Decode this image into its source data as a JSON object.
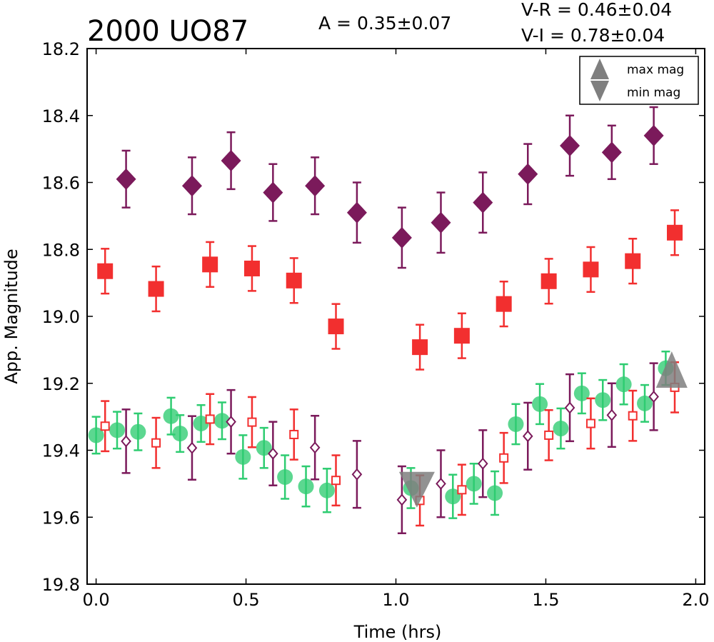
{
  "header": {
    "title": "2000 UO87",
    "amplitude": "A  = 0.35±0.07",
    "color_vr": "V-R = 0.46±0.04",
    "color_vi": "V-I  = 0.78±0.04"
  },
  "legend": {
    "placement": "top-right",
    "items": [
      {
        "label": "max mag",
        "icon": "triangle-up-icon",
        "color": "#7f7f7f"
      },
      {
        "label": "min mag",
        "icon": "triangle-down-icon",
        "color": "#7f7f7f"
      }
    ]
  },
  "chart_data": {
    "type": "scatter",
    "title": "2000 UO87",
    "xlabel": "Time (hrs)",
    "ylabel": "App. Magnitude",
    "xlim": [
      -0.03,
      2.03
    ],
    "ylim": [
      19.8,
      18.2
    ],
    "y_inverted": true,
    "x_ticks": [
      "0.0",
      "0.5",
      "1.0",
      "1.5",
      "2.0"
    ],
    "y_ticks": [
      "18.2",
      "18.4",
      "18.6",
      "18.8",
      "19.0",
      "19.2",
      "19.4",
      "19.6",
      "19.8"
    ],
    "grid": false,
    "series": [
      {
        "marker": "diamond-filled",
        "color": "#7b1a5b",
        "points": [
          {
            "x": 0.1,
            "y": 18.59,
            "err": 0.085
          },
          {
            "x": 0.32,
            "y": 18.61,
            "err": 0.085
          },
          {
            "x": 0.45,
            "y": 18.535,
            "err": 0.085
          },
          {
            "x": 0.59,
            "y": 18.63,
            "err": 0.085
          },
          {
            "x": 0.73,
            "y": 18.61,
            "err": 0.085
          },
          {
            "x": 0.87,
            "y": 18.69,
            "err": 0.09
          },
          {
            "x": 1.02,
            "y": 18.765,
            "err": 0.09
          },
          {
            "x": 1.15,
            "y": 18.72,
            "err": 0.09
          },
          {
            "x": 1.29,
            "y": 18.66,
            "err": 0.09
          },
          {
            "x": 1.44,
            "y": 18.575,
            "err": 0.09
          },
          {
            "x": 1.58,
            "y": 18.49,
            "err": 0.09
          },
          {
            "x": 1.72,
            "y": 18.51,
            "err": 0.08
          },
          {
            "x": 1.86,
            "y": 18.46,
            "err": 0.085
          }
        ]
      },
      {
        "marker": "square-filled",
        "color": "#f22f2f",
        "points": [
          {
            "x": 0.03,
            "y": 18.865,
            "err": 0.067
          },
          {
            "x": 0.2,
            "y": 18.918,
            "err": 0.067
          },
          {
            "x": 0.38,
            "y": 18.845,
            "err": 0.067
          },
          {
            "x": 0.52,
            "y": 18.857,
            "err": 0.067
          },
          {
            "x": 0.66,
            "y": 18.893,
            "err": 0.067
          },
          {
            "x": 0.8,
            "y": 19.03,
            "err": 0.067
          },
          {
            "x": 1.08,
            "y": 19.092,
            "err": 0.067
          },
          {
            "x": 1.22,
            "y": 19.058,
            "err": 0.067
          },
          {
            "x": 1.36,
            "y": 18.963,
            "err": 0.067
          },
          {
            "x": 1.51,
            "y": 18.895,
            "err": 0.067
          },
          {
            "x": 1.65,
            "y": 18.86,
            "err": 0.067
          },
          {
            "x": 1.79,
            "y": 18.835,
            "err": 0.067
          },
          {
            "x": 1.93,
            "y": 18.75,
            "err": 0.067
          }
        ]
      },
      {
        "marker": "circle-filled",
        "color": "#2ecc71",
        "points": [
          {
            "x": 0.0,
            "y": 19.355,
            "err": 0.055
          },
          {
            "x": 0.07,
            "y": 19.34,
            "err": 0.055
          },
          {
            "x": 0.14,
            "y": 19.345,
            "err": 0.055
          },
          {
            "x": 0.25,
            "y": 19.298,
            "err": 0.055
          },
          {
            "x": 0.28,
            "y": 19.35,
            "err": 0.055
          },
          {
            "x": 0.35,
            "y": 19.32,
            "err": 0.055
          },
          {
            "x": 0.42,
            "y": 19.312,
            "err": 0.055
          },
          {
            "x": 0.49,
            "y": 19.42,
            "err": 0.065
          },
          {
            "x": 0.56,
            "y": 19.393,
            "err": 0.06
          },
          {
            "x": 0.63,
            "y": 19.48,
            "err": 0.065
          },
          {
            "x": 0.7,
            "y": 19.508,
            "err": 0.06
          },
          {
            "x": 0.77,
            "y": 19.52,
            "err": 0.065
          },
          {
            "x": 1.05,
            "y": 19.513,
            "err": 0.06
          },
          {
            "x": 1.19,
            "y": 19.538,
            "err": 0.065
          },
          {
            "x": 1.26,
            "y": 19.5,
            "err": 0.06
          },
          {
            "x": 1.33,
            "y": 19.528,
            "err": 0.065
          },
          {
            "x": 1.4,
            "y": 19.322,
            "err": 0.06
          },
          {
            "x": 1.48,
            "y": 19.262,
            "err": 0.06
          },
          {
            "x": 1.55,
            "y": 19.335,
            "err": 0.06
          },
          {
            "x": 1.62,
            "y": 19.23,
            "err": 0.06
          },
          {
            "x": 1.69,
            "y": 19.25,
            "err": 0.06
          },
          {
            "x": 1.76,
            "y": 19.203,
            "err": 0.06
          },
          {
            "x": 1.83,
            "y": 19.26,
            "err": 0.055
          },
          {
            "x": 1.9,
            "y": 19.155,
            "err": 0.05
          }
        ]
      },
      {
        "marker": "square-open",
        "color": "#f22f2f",
        "points": [
          {
            "x": 0.03,
            "y": 19.328,
            "err": 0.075
          },
          {
            "x": 0.2,
            "y": 19.378,
            "err": 0.075
          },
          {
            "x": 0.38,
            "y": 19.307,
            "err": 0.075
          },
          {
            "x": 0.52,
            "y": 19.316,
            "err": 0.075
          },
          {
            "x": 0.66,
            "y": 19.353,
            "err": 0.075
          },
          {
            "x": 0.8,
            "y": 19.49,
            "err": 0.075
          },
          {
            "x": 1.08,
            "y": 19.55,
            "err": 0.075
          },
          {
            "x": 1.22,
            "y": 19.518,
            "err": 0.075
          },
          {
            "x": 1.36,
            "y": 19.423,
            "err": 0.075
          },
          {
            "x": 1.51,
            "y": 19.355,
            "err": 0.075
          },
          {
            "x": 1.65,
            "y": 19.32,
            "err": 0.075
          },
          {
            "x": 1.79,
            "y": 19.297,
            "err": 0.075
          },
          {
            "x": 1.93,
            "y": 19.212,
            "err": 0.075
          }
        ]
      },
      {
        "marker": "diamond-open",
        "color": "#7b1a5b",
        "points": [
          {
            "x": 0.1,
            "y": 19.373,
            "err": 0.095
          },
          {
            "x": 0.32,
            "y": 19.393,
            "err": 0.095
          },
          {
            "x": 0.45,
            "y": 19.315,
            "err": 0.095
          },
          {
            "x": 0.59,
            "y": 19.41,
            "err": 0.095
          },
          {
            "x": 0.73,
            "y": 19.392,
            "err": 0.095
          },
          {
            "x": 0.87,
            "y": 19.472,
            "err": 0.1
          },
          {
            "x": 1.02,
            "y": 19.548,
            "err": 0.1
          },
          {
            "x": 1.15,
            "y": 19.5,
            "err": 0.1
          },
          {
            "x": 1.29,
            "y": 19.44,
            "err": 0.1
          },
          {
            "x": 1.44,
            "y": 19.358,
            "err": 0.1
          },
          {
            "x": 1.58,
            "y": 19.273,
            "err": 0.1
          },
          {
            "x": 1.72,
            "y": 19.295,
            "err": 0.095
          },
          {
            "x": 1.86,
            "y": 19.24,
            "err": 0.1
          }
        ]
      },
      {
        "marker": "triangle-up",
        "color": "#7f7f7f",
        "name": "max mag",
        "points": [
          {
            "x": 1.92,
            "y": 19.175
          }
        ]
      },
      {
        "marker": "triangle-down",
        "color": "#7f7f7f",
        "name": "min mag",
        "points": [
          {
            "x": 1.07,
            "y": 19.52
          }
        ]
      }
    ]
  }
}
